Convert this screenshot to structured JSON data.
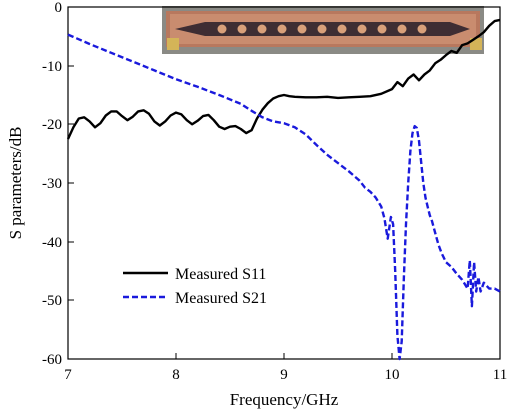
{
  "chart_data": {
    "type": "line",
    "xlabel": "Frequency/GHz",
    "ylabel": "S parameters/dB",
    "xlim": [
      7,
      11
    ],
    "ylim": [
      -60,
      0
    ],
    "xticks": [
      "7",
      "8",
      "9",
      "10",
      "11"
    ],
    "yticks": [
      "0",
      "-10",
      "-20",
      "-30",
      "-40",
      "-50",
      "-60"
    ],
    "grid": false,
    "legend_position": "lower-left",
    "inset": "photo of fabricated circuit board with connectors",
    "series": [
      {
        "name": "Measured S11",
        "color": "#000000",
        "style": "solid",
        "x": [
          7.0,
          7.05,
          7.1,
          7.15,
          7.2,
          7.25,
          7.3,
          7.35,
          7.4,
          7.45,
          7.5,
          7.55,
          7.6,
          7.65,
          7.7,
          7.75,
          7.8,
          7.85,
          7.9,
          7.95,
          8.0,
          8.05,
          8.1,
          8.15,
          8.2,
          8.25,
          8.3,
          8.35,
          8.4,
          8.45,
          8.5,
          8.55,
          8.6,
          8.65,
          8.7,
          8.75,
          8.8,
          8.85,
          8.9,
          8.95,
          9.0,
          9.05,
          9.1,
          9.2,
          9.3,
          9.4,
          9.5,
          9.6,
          9.7,
          9.8,
          9.9,
          10.0,
          10.05,
          10.1,
          10.15,
          10.2,
          10.25,
          10.3,
          10.35,
          10.4,
          10.45,
          10.5,
          10.55,
          10.6,
          10.65,
          10.7,
          10.75,
          10.8,
          10.85,
          10.9,
          10.95,
          11.0
        ],
        "values": [
          -22.5,
          -20.5,
          -19.0,
          -18.8,
          -19.5,
          -20.5,
          -19.8,
          -18.5,
          -17.8,
          -17.8,
          -18.6,
          -19.3,
          -18.7,
          -17.8,
          -17.6,
          -18.2,
          -19.5,
          -20.2,
          -19.5,
          -18.5,
          -18.0,
          -18.3,
          -19.3,
          -20.0,
          -19.4,
          -18.6,
          -18.4,
          -19.3,
          -20.4,
          -20.8,
          -20.4,
          -20.3,
          -20.8,
          -21.5,
          -21.0,
          -19.0,
          -17.5,
          -16.4,
          -15.6,
          -15.2,
          -15.0,
          -15.2,
          -15.3,
          -15.4,
          -15.4,
          -15.3,
          -15.5,
          -15.4,
          -15.3,
          -15.2,
          -14.8,
          -14.0,
          -12.8,
          -13.5,
          -12.2,
          -11.5,
          -12.5,
          -11.5,
          -10.8,
          -9.6,
          -9.0,
          -8.2,
          -7.5,
          -7.8,
          -6.5,
          -6.2,
          -5.6,
          -5.0,
          -4.3,
          -3.2,
          -2.4,
          -2.2
        ]
      },
      {
        "name": "Measured S21",
        "color": "#1a1adc",
        "style": "dashed",
        "x": [
          7.0,
          7.2,
          7.4,
          7.6,
          7.8,
          8.0,
          8.2,
          8.4,
          8.6,
          8.7,
          8.8,
          8.9,
          9.0,
          9.1,
          9.2,
          9.3,
          9.4,
          9.5,
          9.6,
          9.7,
          9.75,
          9.8,
          9.85,
          9.9,
          9.93,
          9.96,
          9.99,
          10.01,
          10.03,
          10.05,
          10.07,
          10.09,
          10.11,
          10.13,
          10.15,
          10.17,
          10.19,
          10.21,
          10.23,
          10.25,
          10.27,
          10.29,
          10.31,
          10.33,
          10.35,
          10.37,
          10.4,
          10.43,
          10.46,
          10.5,
          10.55,
          10.6,
          10.65,
          10.7,
          10.72,
          10.74,
          10.76,
          10.78,
          10.8,
          10.82,
          10.85,
          10.9,
          10.95,
          11.0
        ],
        "values": [
          -4.7,
          -6.3,
          -7.8,
          -9.3,
          -10.8,
          -12.3,
          -13.6,
          -15.0,
          -16.5,
          -17.7,
          -18.8,
          -19.5,
          -19.8,
          -20.5,
          -21.7,
          -23.5,
          -25.2,
          -26.6,
          -28.0,
          -29.6,
          -30.8,
          -31.5,
          -32.5,
          -34.0,
          -36.0,
          -39.5,
          -35.8,
          -37.0,
          -45.0,
          -56.0,
          -60.0,
          -57.0,
          -46.0,
          -37.0,
          -30.0,
          -24.5,
          -21.5,
          -20.3,
          -20.6,
          -22.8,
          -26.5,
          -30.0,
          -32.5,
          -34.0,
          -35.5,
          -36.5,
          -38.5,
          -40.5,
          -42.0,
          -43.5,
          -44.3,
          -45.5,
          -46.5,
          -48.0,
          -43.2,
          -51.0,
          -43.5,
          -48.5,
          -46.0,
          -48.5,
          -47.0,
          -48.0,
          -48.0,
          -48.5
        ]
      }
    ]
  }
}
